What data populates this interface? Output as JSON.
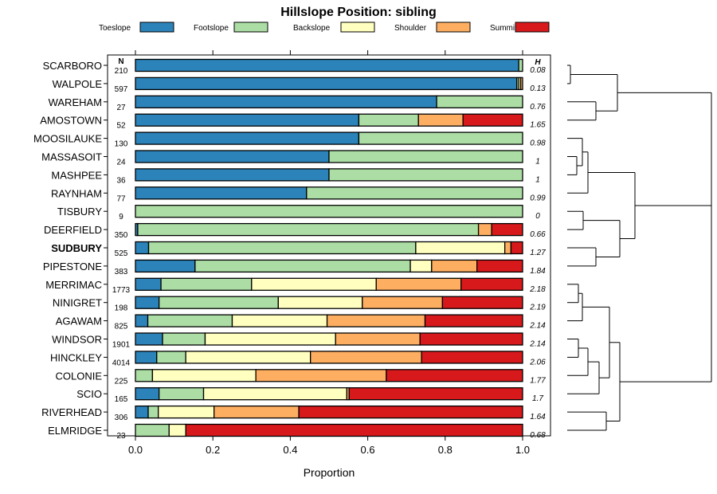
{
  "chart_data": {
    "type": "bar",
    "stacked": true,
    "orientation": "horizontal",
    "title": "Hillslope Position: sibling",
    "xlabel": "Proportion",
    "xlim": [
      0,
      1
    ],
    "x_ticks": [
      "0.0",
      "0.2",
      "0.4",
      "0.6",
      "0.8",
      "1.0"
    ],
    "n_header": "N",
    "h_header": "H",
    "highlight": "SUDBURY",
    "legend": [
      {
        "name": "Toeslope",
        "color": "#2B83BA"
      },
      {
        "name": "Footslope",
        "color": "#ABDDA4"
      },
      {
        "name": "Backslope",
        "color": "#FFFFBF"
      },
      {
        "name": "Shoulder",
        "color": "#FDAE61"
      },
      {
        "name": "Summit",
        "color": "#D7191C"
      }
    ],
    "rows": [
      {
        "label": "SCARBORO",
        "n": "210",
        "h": "0.08",
        "values": [
          0.99,
          0.01,
          0,
          0,
          0
        ]
      },
      {
        "label": "WALPOLE",
        "n": "597",
        "h": "0.13",
        "values": [
          0.985,
          0.005,
          0.005,
          0.005,
          0
        ]
      },
      {
        "label": "WAREHAM",
        "n": "27",
        "h": "0.76",
        "values": [
          0.778,
          0.222,
          0,
          0,
          0
        ]
      },
      {
        "label": "AMOSTOWN",
        "n": "52",
        "h": "1.65",
        "values": [
          0.577,
          0.154,
          0,
          0.115,
          0.154
        ]
      },
      {
        "label": "MOOSILAUKE",
        "n": "130",
        "h": "0.98",
        "values": [
          0.577,
          0.423,
          0,
          0,
          0
        ]
      },
      {
        "label": "MASSASOIT",
        "n": "24",
        "h": "1",
        "values": [
          0.5,
          0.5,
          0,
          0,
          0
        ]
      },
      {
        "label": "MASHPEE",
        "n": "36",
        "h": "1",
        "values": [
          0.5,
          0.5,
          0,
          0,
          0
        ]
      },
      {
        "label": "RAYNHAM",
        "n": "77",
        "h": "0.99",
        "values": [
          0.442,
          0.558,
          0,
          0,
          0
        ]
      },
      {
        "label": "TISBURY",
        "n": "9",
        "h": "0",
        "values": [
          0,
          1,
          0,
          0,
          0
        ]
      },
      {
        "label": "DEERFIELD",
        "n": "350",
        "h": "0.66",
        "values": [
          0.006,
          0.88,
          0,
          0.034,
          0.08
        ]
      },
      {
        "label": "SUDBURY",
        "n": "525",
        "h": "1.27",
        "values": [
          0.034,
          0.69,
          0.23,
          0.016,
          0.03
        ]
      },
      {
        "label": "PIPESTONE",
        "n": "383",
        "h": "1.84",
        "values": [
          0.154,
          0.556,
          0.055,
          0.117,
          0.118
        ]
      },
      {
        "label": "MERRIMAC",
        "n": "1773",
        "h": "2.18",
        "values": [
          0.066,
          0.234,
          0.322,
          0.219,
          0.159
        ]
      },
      {
        "label": "NINIGRET",
        "n": "198",
        "h": "2.19",
        "values": [
          0.061,
          0.308,
          0.217,
          0.207,
          0.207
        ]
      },
      {
        "label": "AGAWAM",
        "n": "825",
        "h": "2.14",
        "values": [
          0.032,
          0.218,
          0.245,
          0.253,
          0.252
        ]
      },
      {
        "label": "WINDSOR",
        "n": "1901",
        "h": "2.14",
        "values": [
          0.07,
          0.11,
          0.337,
          0.218,
          0.265
        ]
      },
      {
        "label": "HINCKLEY",
        "n": "4014",
        "h": "2.06",
        "values": [
          0.055,
          0.075,
          0.322,
          0.287,
          0.261
        ]
      },
      {
        "label": "COLONIE",
        "n": "225",
        "h": "1.77",
        "values": [
          0,
          0.044,
          0.267,
          0.337,
          0.352
        ]
      },
      {
        "label": "SCIO",
        "n": "165",
        "h": "1.7",
        "values": [
          0.061,
          0.115,
          0.37,
          0.006,
          0.448
        ]
      },
      {
        "label": "RIVERHEAD",
        "n": "306",
        "h": "1.64",
        "values": [
          0.033,
          0.026,
          0.144,
          0.219,
          0.578
        ]
      },
      {
        "label": "ELMRIDGE",
        "n": "23",
        "h": "0.68",
        "values": [
          0,
          0.087,
          0.043,
          0,
          0.87
        ]
      }
    ]
  }
}
